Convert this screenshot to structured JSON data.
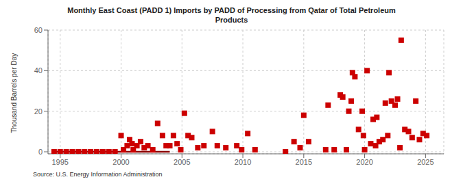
{
  "chart_data": {
    "type": "scatter",
    "title": "Monthly East Coast (PADD 1) Imports by PADD of Processing from Qatar of Total Petroleum\nProducts",
    "y_label": "Thousand Barrels per Day",
    "annotations": [
      "Source: U.S. Energy Information Administration"
    ],
    "xlim": [
      1994.0,
      2026.5
    ],
    "xticks": [
      1995,
      2000,
      2005,
      2010,
      2015,
      2020,
      2025
    ],
    "ylim": [
      -1,
      60
    ],
    "yticks": [
      0,
      20,
      40,
      60
    ],
    "grid": true,
    "series": [
      {
        "type": "line",
        "color": "#8b0000",
        "x": [
          1994.3,
          2004.0
        ],
        "values": [
          0,
          0
        ]
      },
      {
        "type": "scatter",
        "color": "#cc0000",
        "marker": "square",
        "x": [
          1994.5,
          1995.0,
          1995.5,
          1996.0,
          1996.5,
          1997.0,
          1997.5,
          1998.0,
          1998.5,
          1999.0,
          1999.5,
          2000.0,
          2000.2,
          2000.5,
          2000.7,
          2000.9,
          2001.0,
          2001.3,
          2001.6,
          2001.9,
          2002.2,
          2002.6,
          2003.0,
          2003.4,
          2003.7,
          2004.0,
          2004.3,
          2004.6,
          2004.9,
          2005.2,
          2005.5,
          2005.8,
          2006.3,
          2006.8,
          2007.5,
          2007.9,
          2008.6,
          2009.5,
          2009.9,
          2010.4,
          2011.0,
          2013.5,
          2014.2,
          2014.7,
          2015.0,
          2015.4,
          2016.8,
          2017.0,
          2017.5,
          2018.0,
          2018.2,
          2018.5,
          2018.7,
          2018.9,
          2019.0,
          2019.2,
          2019.5,
          2019.8,
          2019.9,
          2020.0,
          2020.2,
          2020.5,
          2020.7,
          2020.9,
          2021.0,
          2021.2,
          2021.5,
          2021.7,
          2021.9,
          2022.0,
          2022.2,
          2022.5,
          2022.7,
          2022.9,
          2023.0,
          2023.3,
          2023.6,
          2023.9,
          2024.2,
          2024.5,
          2024.8,
          2025.1
        ],
        "values": [
          0,
          0,
          0,
          0,
          0,
          0,
          0,
          0,
          0,
          0,
          0,
          8,
          1,
          3,
          6,
          4,
          1,
          3,
          5,
          2,
          3,
          1,
          14,
          8,
          3,
          3,
          8,
          4,
          1,
          19,
          8,
          7,
          2,
          3,
          10,
          3,
          2,
          3,
          1,
          9,
          1,
          0,
          5,
          2,
          18,
          5,
          1,
          23,
          1,
          28,
          27,
          1,
          20,
          25,
          39,
          37,
          11,
          20,
          8,
          1,
          40,
          4,
          16,
          3,
          17,
          5,
          6,
          24,
          8,
          39,
          25,
          23,
          26,
          2,
          55,
          11,
          10,
          7,
          25,
          6,
          9,
          8
        ]
      }
    ]
  }
}
